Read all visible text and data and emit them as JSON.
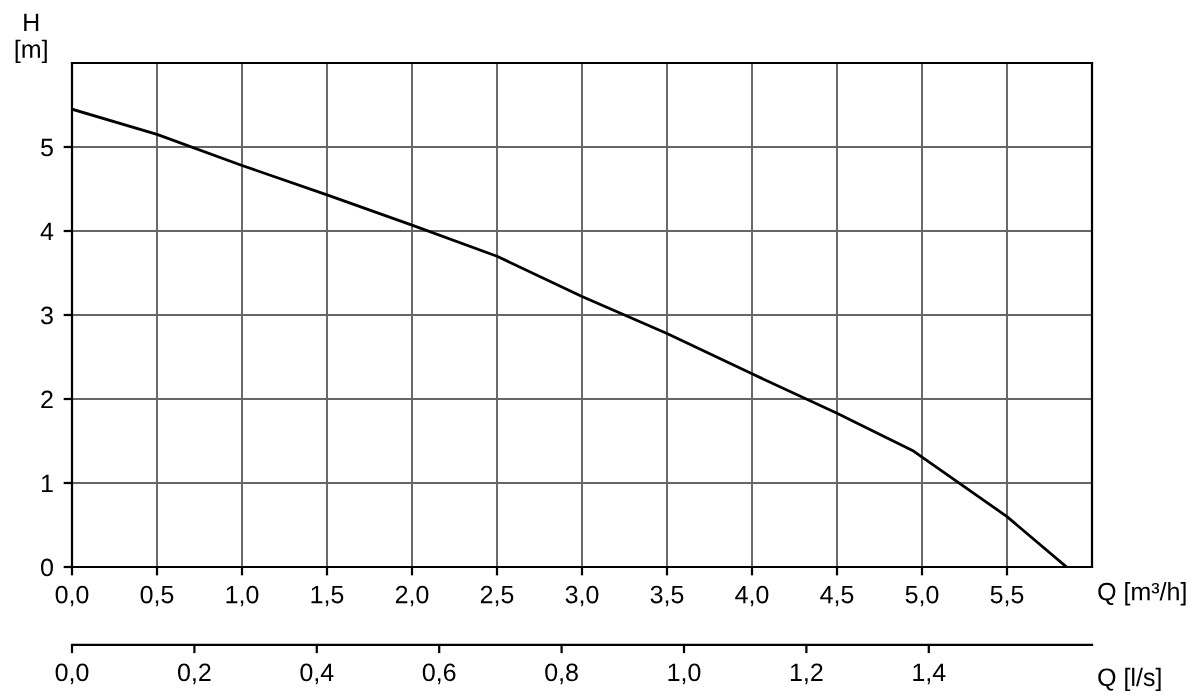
{
  "chart_data": {
    "type": "line",
    "xlabel": "Q [m³/h]",
    "ylabel": "H\n[m]",
    "x2label": "Q [l/s]",
    "xlim": [
      0,
      6
    ],
    "ylim": [
      0,
      6
    ],
    "x2lim": [
      0,
      1.6667
    ],
    "xticks": [
      {
        "value": 0,
        "label": "0,0"
      },
      {
        "value": 0.5,
        "label": "0,5"
      },
      {
        "value": 1,
        "label": "1,0"
      },
      {
        "value": 1.5,
        "label": "1,5"
      },
      {
        "value": 2,
        "label": "2,0"
      },
      {
        "value": 2.5,
        "label": "2,5"
      },
      {
        "value": 3,
        "label": "3,0"
      },
      {
        "value": 3.5,
        "label": "3,5"
      },
      {
        "value": 4,
        "label": "4,0"
      },
      {
        "value": 4.5,
        "label": "4,5"
      },
      {
        "value": 5,
        "label": "5,0"
      },
      {
        "value": 5.5,
        "label": "5,5"
      }
    ],
    "yticks": [
      0,
      1,
      2,
      3,
      4,
      5
    ],
    "x2ticks": [
      {
        "value": 0,
        "label": "0,0"
      },
      {
        "value": 0.2,
        "label": "0,2"
      },
      {
        "value": 0.4,
        "label": "0,4"
      },
      {
        "value": 0.6,
        "label": "0,6"
      },
      {
        "value": 0.8,
        "label": "0,8"
      },
      {
        "value": 1.0,
        "label": "1,0"
      },
      {
        "value": 1.2,
        "label": "1,2"
      },
      {
        "value": 1.4,
        "label": "1,4"
      }
    ],
    "grid": true,
    "series": [
      {
        "color": "#000000",
        "x": [
          0,
          0.5,
          1,
          1.5,
          2,
          2.5,
          3,
          3.5,
          4,
          4.5,
          4.75,
          4.95,
          5.5,
          5.85
        ],
        "values": [
          5.45,
          5.15,
          4.78,
          4.43,
          4.07,
          3.7,
          3.22,
          2.78,
          2.3,
          1.83,
          1.58,
          1.38,
          0.6,
          0
        ]
      }
    ]
  }
}
